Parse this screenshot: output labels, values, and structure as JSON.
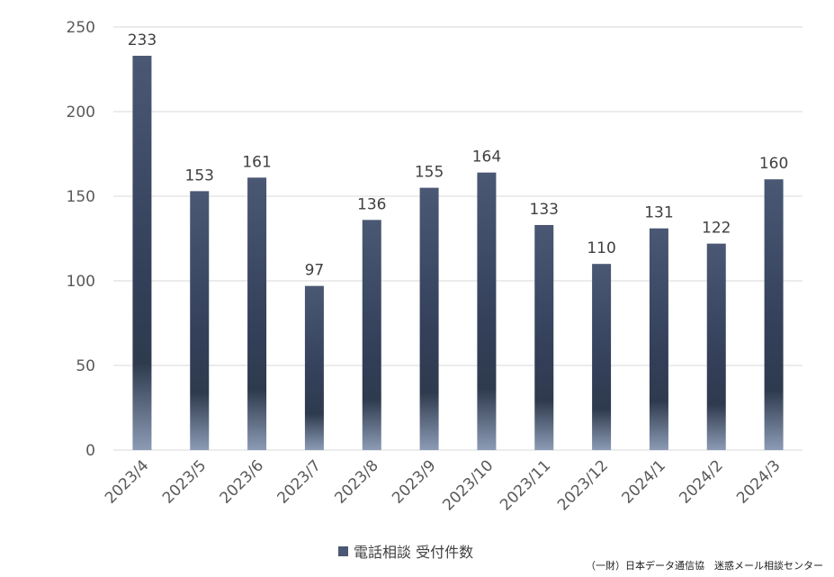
{
  "chart_data": {
    "type": "bar",
    "categories": [
      "2023/4",
      "2023/5",
      "2023/6",
      "2023/7",
      "2023/8",
      "2023/9",
      "2023/10",
      "2023/11",
      "2023/12",
      "2024/1",
      "2024/2",
      "2024/3"
    ],
    "series": [
      {
        "name": "電話相談 受付件数",
        "values": [
          233,
          153,
          161,
          97,
          136,
          155,
          164,
          133,
          110,
          131,
          122,
          160
        ]
      }
    ],
    "ylim": [
      0,
      250
    ],
    "yticks": [
      0,
      50,
      100,
      150,
      200,
      250
    ],
    "grid": true,
    "legend_position": "bottom-center",
    "data_labels": true,
    "colors": {
      "bar_top": "#4a5874",
      "bar_mid": "#2e3a4d",
      "bar_bottom": "#8c9bb5",
      "grid": "#d9d9d9",
      "text": "#595959",
      "label": "#404040"
    }
  },
  "legend": {
    "label": "電話相談 受付件数"
  },
  "source": "（一財）日本データ通信協　迷惑メール相談センター"
}
